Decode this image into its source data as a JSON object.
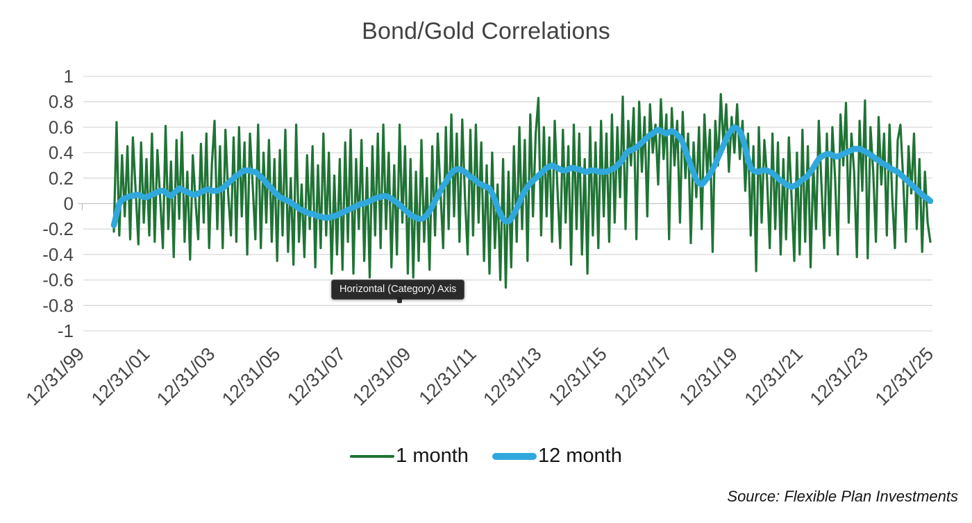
{
  "tooltip": {
    "text": "Horizontal (Category) Axis"
  },
  "footer": {
    "source": "Source: Flexible Plan Investments"
  },
  "chart_data": {
    "type": "line",
    "title": "Bond/Gold Correlations",
    "xlabel": "",
    "ylabel": "",
    "ylim": [
      -1,
      1
    ],
    "grid": "horizontal",
    "legend_position": "bottom",
    "x_start": "2000-12",
    "x_end": "2025-12",
    "x_frequency": "monthly",
    "x_tick_labels": [
      "12/31/99",
      "12/31/01",
      "12/31/03",
      "12/31/05",
      "12/31/07",
      "12/31/09",
      "12/31/11",
      "12/31/13",
      "12/31/15",
      "12/31/17",
      "12/31/19",
      "12/31/21",
      "12/31/23",
      "12/31/25"
    ],
    "y_tick_labels": [
      "1",
      "0.8",
      "0.6",
      "0.4",
      "0.2",
      "0",
      "-0.2",
      "-0.4",
      "-0.6",
      "-0.8",
      "-1"
    ],
    "y_ticks": [
      1,
      0.8,
      0.6,
      0.4,
      0.2,
      0,
      -0.2,
      -0.4,
      -0.6,
      -0.8,
      -1
    ],
    "colors": {
      "one_month": "#1f7335",
      "twelve_month": "#31a8dc",
      "gridline": "#d9d9d9",
      "zero_axis": "#c3c3c3",
      "title_text": "#424242",
      "axis_text": "#454545",
      "tooltip_bg": "#2a2a2a",
      "tooltip_text": "#f4f4f4"
    },
    "series": [
      {
        "name": "1 month",
        "color_key": "one_month",
        "values": [
          -0.22,
          0.64,
          -0.25,
          0.38,
          -0.1,
          0.45,
          -0.28,
          0.52,
          0.1,
          -0.32,
          0.48,
          -0.15,
          0.35,
          -0.25,
          0.55,
          -0.3,
          0.42,
          0.05,
          -0.35,
          0.61,
          -0.2,
          0.33,
          -0.42,
          0.5,
          -0.12,
          0.56,
          -0.3,
          0.25,
          -0.44,
          0.38,
          0.02,
          -0.28,
          0.47,
          -0.15,
          0.55,
          -0.35,
          0.3,
          0.65,
          -0.2,
          0.45,
          -0.35,
          0.58,
          0.08,
          -0.25,
          0.52,
          -0.3,
          0.6,
          -0.1,
          0.48,
          -0.4,
          0.55,
          0.15,
          -0.28,
          0.62,
          -0.35,
          0.4,
          -0.15,
          0.5,
          -0.3,
          0.35,
          -0.45,
          0.42,
          -0.25,
          0.58,
          -0.38,
          0.2,
          -0.48,
          0.62,
          -0.3,
          0.15,
          -0.42,
          0.38,
          -0.2,
          0.45,
          -0.5,
          0.3,
          -0.35,
          0.55,
          -0.25,
          0.4,
          -0.55,
          0.22,
          -0.4,
          0.35,
          -0.52,
          0.48,
          -0.3,
          0.58,
          -0.55,
          0.35,
          -0.2,
          0.5,
          -0.45,
          0.28,
          -0.58,
          0.45,
          -0.25,
          0.55,
          -0.35,
          0.62,
          -0.2,
          0.4,
          -0.5,
          0.3,
          -0.4,
          0.62,
          -0.15,
          0.45,
          -0.55,
          0.35,
          -0.58,
          0.25,
          -0.45,
          0.5,
          -0.3,
          0.2,
          -0.52,
          0.45,
          -0.25,
          0.55,
          0.1,
          -0.35,
          0.6,
          -0.2,
          0.7,
          -0.1,
          0.55,
          -0.3,
          0.66,
          0.05,
          -0.4,
          0.58,
          -0.25,
          0.62,
          -0.15,
          0.48,
          -0.45,
          0.3,
          -0.55,
          0.4,
          -0.35,
          0.15,
          -0.6,
          0.35,
          -0.66,
          0.25,
          -0.5,
          0.45,
          -0.3,
          0.6,
          -0.2,
          0.5,
          -0.45,
          0.7,
          -0.1,
          0.55,
          0.83,
          -0.25,
          0.6,
          -0.1,
          0.52,
          -0.3,
          0.65,
          0.1,
          -0.35,
          0.58,
          -0.15,
          0.45,
          -0.48,
          0.62,
          -0.2,
          0.55,
          -0.4,
          0.35,
          -0.55,
          0.6,
          -0.25,
          0.48,
          -0.35,
          0.65,
          -0.1,
          0.55,
          -0.3,
          0.7,
          -0.15,
          0.6,
          0.05,
          0.84,
          -0.2,
          0.65,
          0.3,
          0.75,
          -0.28,
          0.8,
          0.25,
          0.68,
          -0.1,
          0.78,
          0.4,
          0.62,
          0.15,
          0.82,
          0.35,
          0.7,
          -0.28,
          0.75,
          0.3,
          0.65,
          -0.15,
          0.72,
          0.2,
          0.55,
          -0.31,
          0.48,
          0.05,
          0.6,
          -0.2,
          0.7,
          0.22,
          0.58,
          -0.38,
          0.65,
          0.3,
          0.86,
          0.45,
          0.78,
          0.25,
          0.68,
          0.4,
          0.78,
          0.35,
          0.65,
          0.1,
          0.55,
          -0.25,
          0.45,
          -0.53,
          0.6,
          -0.15,
          0.5,
          0.2,
          -0.35,
          0.55,
          -0.2,
          0.48,
          -0.4,
          0.35,
          -0.28,
          0.52,
          0.05,
          -0.45,
          0.4,
          -0.4,
          0.58,
          -0.3,
          0.45,
          -0.5,
          0.3,
          -0.2,
          0.65,
          0.15,
          -0.35,
          0.55,
          -0.25,
          0.6,
          0.2,
          -0.4,
          0.7,
          0.3,
          0.79,
          -0.15,
          0.55,
          0.25,
          -0.42,
          0.65,
          0.1,
          0.81,
          -0.43,
          0.6,
          0.25,
          -0.3,
          0.68,
          0.15,
          0.55,
          -0.25,
          0.62,
          0.05,
          -0.35,
          0.5,
          0.62,
          0.2,
          -0.3,
          0.45,
          0.08,
          0.55,
          -0.2,
          0.35,
          -0.38,
          0.25,
          -0.15,
          -0.3
        ]
      },
      {
        "name": "12 month",
        "color_key": "twelve_month",
        "values": [
          -0.17,
          -0.08,
          0.0,
          0.03,
          0.04,
          0.05,
          0.06,
          0.06,
          0.07,
          0.07,
          0.06,
          0.05,
          0.05,
          0.06,
          0.07,
          0.08,
          0.09,
          0.1,
          0.1,
          0.09,
          0.07,
          0.06,
          0.08,
          0.1,
          0.12,
          0.11,
          0.1,
          0.09,
          0.08,
          0.07,
          0.07,
          0.08,
          0.09,
          0.1,
          0.11,
          0.11,
          0.1,
          0.1,
          0.1,
          0.11,
          0.12,
          0.14,
          0.16,
          0.18,
          0.2,
          0.22,
          0.23,
          0.25,
          0.26,
          0.26,
          0.26,
          0.25,
          0.25,
          0.23,
          0.21,
          0.19,
          0.16,
          0.14,
          0.12,
          0.09,
          0.07,
          0.05,
          0.04,
          0.03,
          0.02,
          0.01,
          -0.01,
          -0.02,
          -0.04,
          -0.05,
          -0.06,
          -0.07,
          -0.08,
          -0.08,
          -0.09,
          -0.1,
          -0.1,
          -0.11,
          -0.11,
          -0.11,
          -0.1,
          -0.1,
          -0.09,
          -0.08,
          -0.07,
          -0.06,
          -0.05,
          -0.04,
          -0.03,
          -0.02,
          -0.01,
          0.0,
          0.0,
          0.01,
          0.02,
          0.03,
          0.04,
          0.05,
          0.05,
          0.06,
          0.06,
          0.05,
          0.04,
          0.02,
          0.01,
          -0.01,
          -0.03,
          -0.05,
          -0.07,
          -0.09,
          -0.1,
          -0.11,
          -0.12,
          -0.12,
          -0.11,
          -0.09,
          -0.06,
          -0.02,
          0.02,
          0.06,
          0.1,
          0.14,
          0.17,
          0.21,
          0.24,
          0.26,
          0.27,
          0.27,
          0.26,
          0.25,
          0.23,
          0.21,
          0.2,
          0.18,
          0.16,
          0.15,
          0.14,
          0.13,
          0.12,
          0.08,
          0.03,
          -0.03,
          -0.08,
          -0.12,
          -0.14,
          -0.14,
          -0.12,
          -0.08,
          -0.04,
          0.01,
          0.06,
          0.1,
          0.13,
          0.16,
          0.18,
          0.2,
          0.22,
          0.24,
          0.26,
          0.28,
          0.29,
          0.3,
          0.29,
          0.28,
          0.27,
          0.26,
          0.26,
          0.27,
          0.28,
          0.28,
          0.27,
          0.27,
          0.26,
          0.25,
          0.25,
          0.26,
          0.26,
          0.26,
          0.25,
          0.25,
          0.25,
          0.25,
          0.26,
          0.27,
          0.28,
          0.3,
          0.32,
          0.35,
          0.39,
          0.41,
          0.42,
          0.43,
          0.44,
          0.46,
          0.48,
          0.5,
          0.52,
          0.54,
          0.55,
          0.57,
          0.58,
          0.57,
          0.56,
          0.55,
          0.56,
          0.57,
          0.56,
          0.54,
          0.52,
          0.48,
          0.42,
          0.36,
          0.3,
          0.24,
          0.19,
          0.16,
          0.15,
          0.17,
          0.2,
          0.23,
          0.27,
          0.31,
          0.36,
          0.41,
          0.46,
          0.51,
          0.55,
          0.58,
          0.6,
          0.59,
          0.57,
          0.52,
          0.44,
          0.35,
          0.28,
          0.26,
          0.25,
          0.25,
          0.26,
          0.26,
          0.26,
          0.25,
          0.24,
          0.22,
          0.2,
          0.18,
          0.17,
          0.15,
          0.14,
          0.13,
          0.14,
          0.15,
          0.17,
          0.19,
          0.2,
          0.22,
          0.25,
          0.28,
          0.32,
          0.35,
          0.37,
          0.38,
          0.39,
          0.39,
          0.38,
          0.37,
          0.37,
          0.38,
          0.39,
          0.4,
          0.41,
          0.42,
          0.43,
          0.43,
          0.43,
          0.42,
          0.41,
          0.4,
          0.38,
          0.37,
          0.35,
          0.34,
          0.32,
          0.31,
          0.3,
          0.28,
          0.27,
          0.26,
          0.25,
          0.23,
          0.21,
          0.19,
          0.17,
          0.15,
          0.13,
          0.11,
          0.09,
          0.07,
          0.05,
          0.04,
          0.02
        ]
      }
    ]
  }
}
